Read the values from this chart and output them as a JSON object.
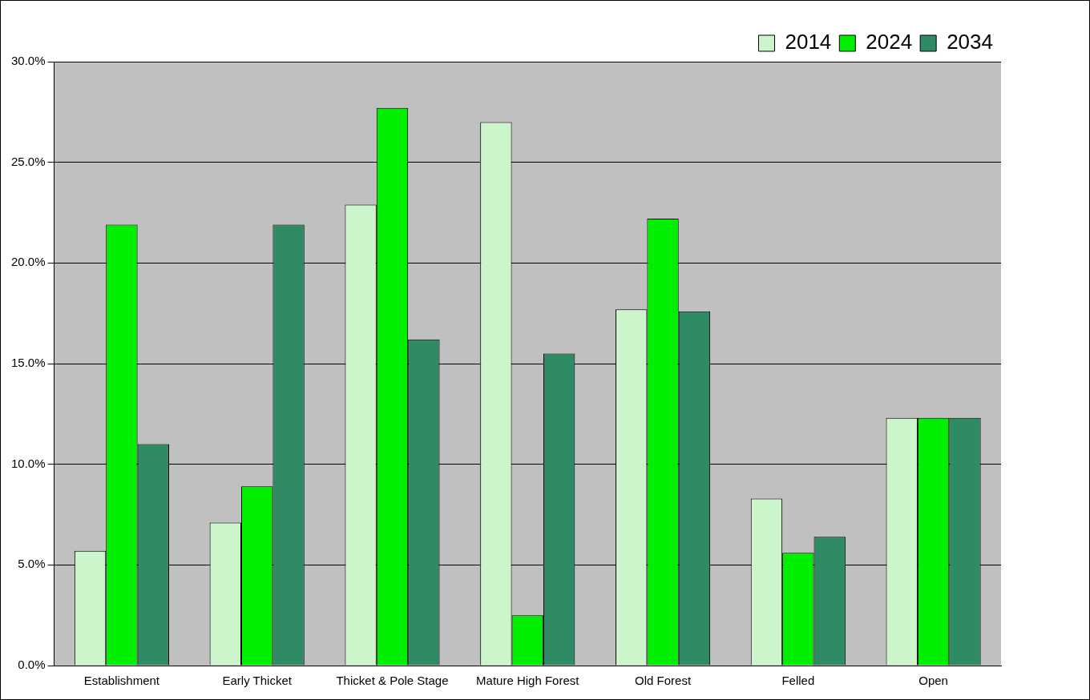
{
  "chart_data": {
    "type": "bar",
    "categories": [
      "Establishment",
      "Early Thicket",
      "Thicket & Pole Stage",
      "Mature High Forest",
      "Old Forest",
      "Felled",
      "Open"
    ],
    "series": [
      {
        "name": "2014",
        "color": "#ccf5cc",
        "values": [
          5.7,
          7.1,
          22.9,
          27.0,
          17.7,
          8.3,
          12.3
        ]
      },
      {
        "name": "2024",
        "color": "#00ee00",
        "values": [
          21.9,
          8.9,
          27.7,
          2.5,
          22.2,
          5.6,
          12.3
        ]
      },
      {
        "name": "2034",
        "color": "#2e8b63",
        "values": [
          11.0,
          21.9,
          16.2,
          15.5,
          17.6,
          6.4,
          12.3
        ]
      }
    ],
    "ylim": [
      0,
      30
    ],
    "yticks": [
      {
        "value": 0,
        "label": "0.0%"
      },
      {
        "value": 5,
        "label": "5.0%"
      },
      {
        "value": 10,
        "label": "10.0%"
      },
      {
        "value": 15,
        "label": "15.0%"
      },
      {
        "value": 20,
        "label": "20.0%"
      },
      {
        "value": 25,
        "label": "25.0%"
      },
      {
        "value": 30,
        "label": "30.0%"
      }
    ],
    "grid": "y",
    "legend": "top right"
  }
}
